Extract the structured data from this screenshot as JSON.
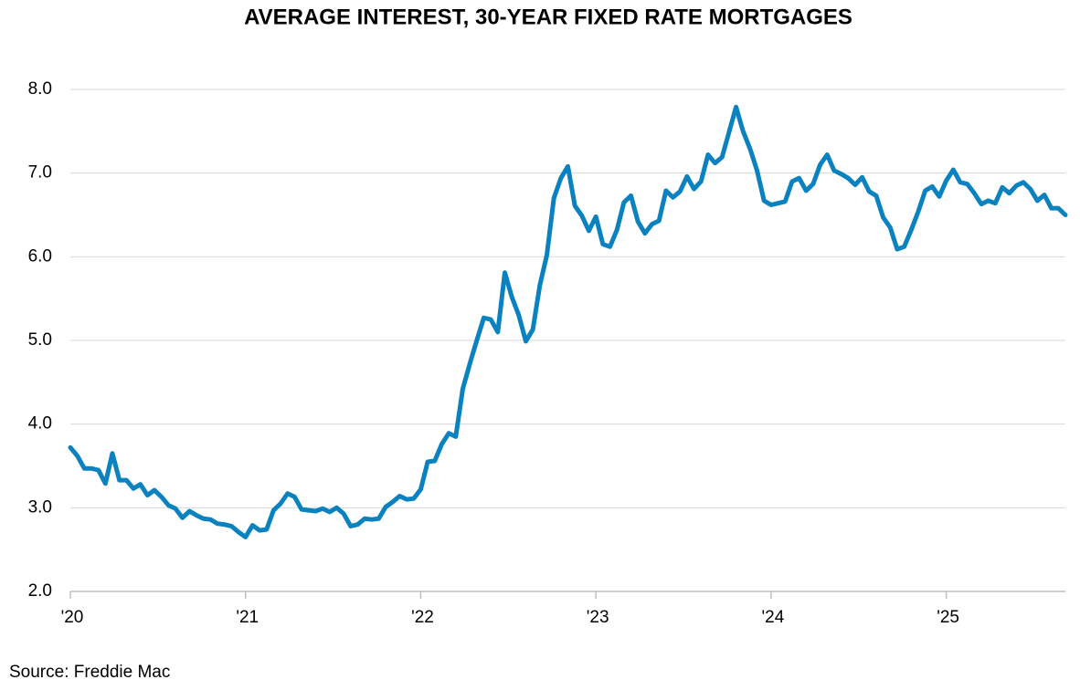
{
  "chart_data": {
    "type": "line",
    "title": "AVERAGE INTEREST, 30-YEAR FIXED RATE MORTGAGES",
    "source": "Source: Freddie Mac",
    "color": "#0a82c0",
    "grid": true,
    "xlim": [
      2020,
      2025.68
    ],
    "xticks": [
      {
        "value": 2020,
        "label": "'20"
      },
      {
        "value": 2021,
        "label": "'21"
      },
      {
        "value": 2022,
        "label": "'22"
      },
      {
        "value": 2023,
        "label": "'23"
      },
      {
        "value": 2024,
        "label": "'24"
      },
      {
        "value": 2025,
        "label": "'25"
      }
    ],
    "ylim": [
      2,
      8
    ],
    "yticks": [
      {
        "value": 2,
        "label": "2.0"
      },
      {
        "value": 3,
        "label": "3.0"
      },
      {
        "value": 4,
        "label": "4.0"
      },
      {
        "value": 5,
        "label": "5.0"
      },
      {
        "value": 6,
        "label": "6.0"
      },
      {
        "value": 7,
        "label": "7.0"
      },
      {
        "value": 8,
        "label": "8.0"
      }
    ],
    "x": [
      2020,
      2020.04,
      2020.08,
      2020.12,
      2020.16,
      2020.2,
      2020.24,
      2020.28,
      2020.32,
      2020.36,
      2020.4,
      2020.44,
      2020.48,
      2020.52,
      2020.56,
      2020.6,
      2020.64,
      2020.68,
      2020.72,
      2020.76,
      2020.8,
      2020.84,
      2020.88,
      2020.92,
      2020.96,
      2021,
      2021.04,
      2021.08,
      2021.12,
      2021.16,
      2021.2,
      2021.24,
      2021.28,
      2021.32,
      2021.36,
      2021.4,
      2021.44,
      2021.48,
      2021.52,
      2021.56,
      2021.6,
      2021.64,
      2021.68,
      2021.72,
      2021.76,
      2021.8,
      2021.84,
      2021.88,
      2021.92,
      2021.96,
      2022,
      2022.04,
      2022.08,
      2022.12,
      2022.16,
      2022.2,
      2022.24,
      2022.28,
      2022.32,
      2022.36,
      2022.4,
      2022.44,
      2022.48,
      2022.52,
      2022.56,
      2022.6,
      2022.64,
      2022.68,
      2022.72,
      2022.76,
      2022.8,
      2022.84,
      2022.88,
      2022.92,
      2022.96,
      2023,
      2023.04,
      2023.08,
      2023.12,
      2023.16,
      2023.2,
      2023.24,
      2023.28,
      2023.32,
      2023.36,
      2023.4,
      2023.44,
      2023.48,
      2023.52,
      2023.56,
      2023.6,
      2023.64,
      2023.68,
      2023.72,
      2023.76,
      2023.8,
      2023.84,
      2023.88,
      2023.92,
      2023.96,
      2024,
      2024.04,
      2024.08,
      2024.12,
      2024.16,
      2024.2,
      2024.24,
      2024.28,
      2024.32,
      2024.36,
      2024.4,
      2024.44,
      2024.48,
      2024.52,
      2024.56,
      2024.6,
      2024.64,
      2024.68,
      2024.72,
      2024.76,
      2024.8,
      2024.84,
      2024.88,
      2024.92,
      2024.96,
      2025,
      2025.04,
      2025.08,
      2025.12,
      2025.16,
      2025.2,
      2025.24,
      2025.28,
      2025.32,
      2025.36,
      2025.4,
      2025.44,
      2025.48,
      2025.52,
      2025.56,
      2025.6,
      2025.64,
      2025.68
    ],
    "values": [
      3.72,
      3.62,
      3.47,
      3.47,
      3.45,
      3.29,
      3.65,
      3.33,
      3.33,
      3.23,
      3.28,
      3.15,
      3.21,
      3.13,
      3.03,
      2.99,
      2.88,
      2.96,
      2.91,
      2.87,
      2.86,
      2.81,
      2.8,
      2.78,
      2.71,
      2.65,
      2.79,
      2.73,
      2.74,
      2.97,
      3.05,
      3.17,
      3.13,
      2.98,
      2.97,
      2.96,
      2.99,
      2.95,
      3.0,
      2.93,
      2.78,
      2.8,
      2.87,
      2.86,
      2.87,
      3.01,
      3.07,
      3.14,
      3.1,
      3.11,
      3.22,
      3.55,
      3.56,
      3.76,
      3.89,
      3.85,
      4.42,
      4.72,
      5.0,
      5.27,
      5.25,
      5.1,
      5.81,
      5.52,
      5.3,
      4.99,
      5.13,
      5.66,
      6.02,
      6.7,
      6.94,
      7.08,
      6.61,
      6.49,
      6.31,
      6.48,
      6.15,
      6.12,
      6.32,
      6.65,
      6.73,
      6.42,
      6.28,
      6.39,
      6.43,
      6.79,
      6.71,
      6.78,
      6.96,
      6.81,
      6.9,
      7.22,
      7.12,
      7.19,
      7.49,
      7.79,
      7.5,
      7.29,
      7.03,
      6.67,
      6.62,
      6.64,
      6.66,
      6.9,
      6.94,
      6.79,
      6.87,
      7.1,
      7.22,
      7.03,
      6.99,
      6.94,
      6.86,
      6.95,
      6.78,
      6.73,
      6.47,
      6.35,
      6.09,
      6.12,
      6.32,
      6.54,
      6.79,
      6.84,
      6.72,
      6.91,
      7.04,
      6.89,
      6.87,
      6.76,
      6.63,
      6.67,
      6.64,
      6.83,
      6.76,
      6.85,
      6.89,
      6.81,
      6.67,
      6.74,
      6.58,
      6.58,
      6.5
    ]
  }
}
